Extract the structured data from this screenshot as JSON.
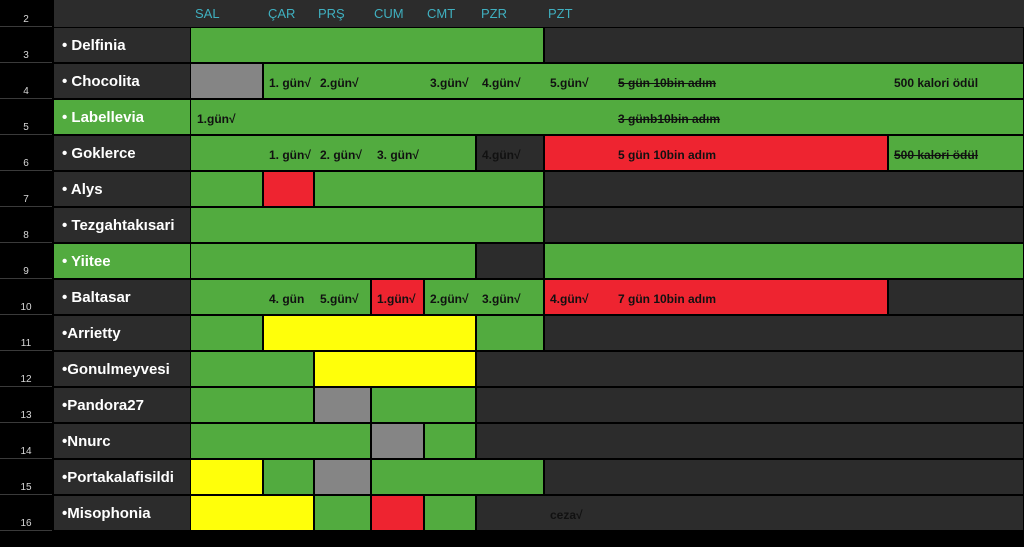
{
  "colors": {
    "green": "#52ab3f",
    "gray": "#858585",
    "red": "#ee2430",
    "yellow": "#ffff0a",
    "dark": "#2c2c2c",
    "header_text": "#3fb0c0"
  },
  "row_numbers": [
    "2",
    "3",
    "4",
    "5",
    "6",
    "7",
    "8",
    "9",
    "10",
    "11",
    "12",
    "13",
    "14",
    "15",
    "16"
  ],
  "days": [
    "SAL",
    "ÇAR",
    "PRŞ",
    "CUM",
    "CMT",
    "PZR",
    "PZT"
  ],
  "rows": [
    {
      "name": "•  Delfinia",
      "fill": "dark",
      "cells": [
        "green",
        "green",
        "green",
        "green",
        "green",
        "green",
        "dark",
        "dark",
        "dark",
        "dark",
        "dark",
        "dark",
        "dark",
        "dark"
      ],
      "texts": []
    },
    {
      "name": "•  Chocolita",
      "fill": "dark",
      "cells": [
        "gray",
        "green",
        "green",
        "green",
        "green",
        "green",
        "green",
        "green",
        "green",
        "green",
        "green",
        "green",
        "green",
        "green"
      ],
      "texts": [
        {
          "col": 1,
          "text": "1. gün√"
        },
        {
          "col": 2,
          "text": "2.gün√"
        },
        {
          "col": 4,
          "text": "3.gün√"
        },
        {
          "col": 5,
          "text": "4.gün√"
        },
        {
          "col": 6,
          "text": "5.gün√"
        },
        {
          "col": 7,
          "text": "5 gün 10bin adım",
          "strike": true
        },
        {
          "col": 12,
          "text": "500 kalori ödül"
        }
      ]
    },
    {
      "name": "•  Labellevia",
      "fill": "green",
      "cells": [
        "green",
        "green",
        "green",
        "green",
        "green",
        "green",
        "green",
        "green",
        "green",
        "green",
        "green",
        "green",
        "green",
        "green"
      ],
      "texts": [
        {
          "col": 0,
          "text": "1.gün√"
        },
        {
          "col": 7,
          "text": "3 günb10bin adım",
          "strike": true
        }
      ]
    },
    {
      "name": "•  Goklerce",
      "fill": "dark",
      "cells": [
        "green",
        "green",
        "green",
        "green",
        "green",
        "dark",
        "red",
        "red",
        "red",
        "red",
        "red",
        "red",
        "green",
        "green"
      ],
      "texts": [
        {
          "col": 1,
          "text": "1. gün√"
        },
        {
          "col": 2,
          "text": "2. gün√"
        },
        {
          "col": 3,
          "text": "3. gün√"
        },
        {
          "col": 5,
          "text": "4.gün√"
        },
        {
          "col": 7,
          "text": "5 gün 10bin adım"
        },
        {
          "col": 12,
          "text": "500 kalori ödül",
          "strike": true
        }
      ]
    },
    {
      "name": "•  Alys",
      "fill": "dark",
      "cells": [
        "green",
        "red",
        "green",
        "green",
        "green",
        "green",
        "dark",
        "dark",
        "dark",
        "dark",
        "dark",
        "dark",
        "dark",
        "dark"
      ],
      "texts": []
    },
    {
      "name": "• Tezgahtakısari",
      "fill": "dark",
      "cells": [
        "green",
        "green",
        "green",
        "green",
        "green",
        "green",
        "dark",
        "dark",
        "dark",
        "dark",
        "dark",
        "dark",
        "dark",
        "dark"
      ],
      "texts": []
    },
    {
      "name": "• Yiitee",
      "fill": "green",
      "cells": [
        "green",
        "green",
        "green",
        "green",
        "green",
        "dark",
        "green",
        "green",
        "green",
        "green",
        "green",
        "green",
        "green",
        "green"
      ],
      "texts": []
    },
    {
      "name": "• Baltasar",
      "fill": "dark",
      "cells": [
        "green",
        "green",
        "green",
        "red",
        "green",
        "green",
        "red",
        "red",
        "red",
        "red",
        "red",
        "red",
        "dark",
        "dark"
      ],
      "texts": [
        {
          "col": 1,
          "text": "4. gün"
        },
        {
          "col": 2,
          "text": "5.gün√"
        },
        {
          "col": 3,
          "text": "1.gün√"
        },
        {
          "col": 4,
          "text": "2.gün√"
        },
        {
          "col": 5,
          "text": "3.gün√"
        },
        {
          "col": 6,
          "text": "4.gün√"
        },
        {
          "col": 7,
          "text": "7 gün 10bin adım"
        }
      ]
    },
    {
      "name": "•Arrietty",
      "fill": "dark",
      "cells": [
        "green",
        "yellow",
        "yellow",
        "yellow",
        "yellow",
        "green",
        "dark",
        "dark",
        "dark",
        "dark",
        "dark",
        "dark",
        "dark",
        "dark"
      ],
      "texts": []
    },
    {
      "name": "•Gonulmeyvesi",
      "fill": "dark",
      "cells": [
        "green",
        "green",
        "yellow",
        "yellow",
        "yellow",
        "dark",
        "dark",
        "dark",
        "dark",
        "dark",
        "dark",
        "dark",
        "dark",
        "dark"
      ],
      "texts": []
    },
    {
      "name": "•Pandora27",
      "fill": "dark",
      "cells": [
        "green",
        "green",
        "gray",
        "green",
        "green",
        "dark",
        "dark",
        "dark",
        "dark",
        "dark",
        "dark",
        "dark",
        "dark",
        "dark"
      ],
      "texts": []
    },
    {
      "name": "•Nnurc",
      "fill": "dark",
      "cells": [
        "green",
        "green",
        "green",
        "gray",
        "green",
        "dark",
        "dark",
        "dark",
        "dark",
        "dark",
        "dark",
        "dark",
        "dark",
        "dark"
      ],
      "texts": []
    },
    {
      "name": "•Portakalafisildi",
      "fill": "dark",
      "cells": [
        "yellow",
        "green",
        "gray",
        "green",
        "green",
        "green",
        "dark",
        "dark",
        "dark",
        "dark",
        "dark",
        "dark",
        "dark",
        "dark"
      ],
      "texts": []
    },
    {
      "name": "•Misophonia",
      "fill": "dark",
      "cells": [
        "yellow",
        "yellow",
        "green",
        "red",
        "green",
        "dark",
        "dark",
        "dark",
        "dark",
        "dark",
        "dark",
        "dark",
        "dark",
        "dark"
      ],
      "texts": [
        {
          "col": 6,
          "text": "ceza√"
        }
      ]
    }
  ]
}
